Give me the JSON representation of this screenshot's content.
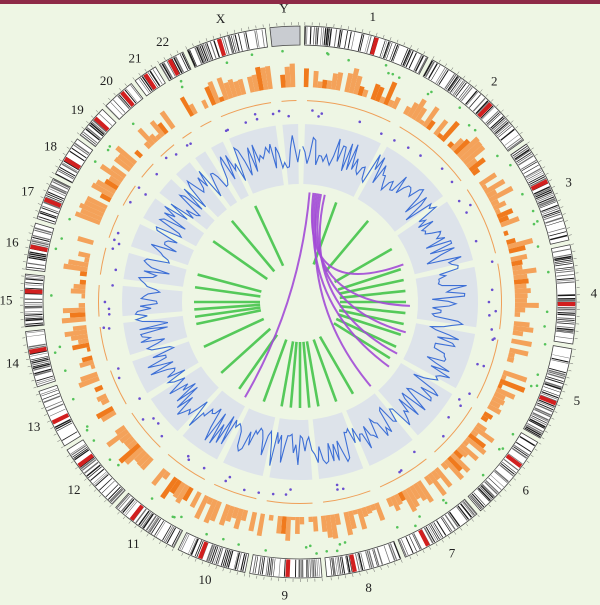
{
  "colors": {
    "background": "#eef6e4",
    "top_rule": "#8e2a47",
    "ideogram_dark": "#1a1a1a",
    "ideogram_light": "#ffffff",
    "centromere": "#d21f1f",
    "histogram": "#f4a25a",
    "histogram_dark": "#f07a1d",
    "scatter_green": "#55c35a",
    "scatter_purple": "#6a4fd0",
    "line_track": "#3d6fd6",
    "line_track_bg": "#dde3ea",
    "link_green": "#55c95a",
    "link_purple": "#a24bd6"
  },
  "chromosomes": [
    {
      "label": "1"
    },
    {
      "label": "2"
    },
    {
      "label": "3"
    },
    {
      "label": "4"
    },
    {
      "label": "5"
    },
    {
      "label": "6"
    },
    {
      "label": "7"
    },
    {
      "label": "8"
    },
    {
      "label": "9"
    },
    {
      "label": "10"
    },
    {
      "label": "11"
    },
    {
      "label": "12"
    },
    {
      "label": "13"
    },
    {
      "label": "14"
    },
    {
      "label": "15"
    },
    {
      "label": "16"
    },
    {
      "label": "17"
    },
    {
      "label": "18"
    },
    {
      "label": "19"
    },
    {
      "label": "20"
    },
    {
      "label": "21"
    },
    {
      "label": "22"
    },
    {
      "label": "X"
    },
    {
      "label": "Y"
    }
  ]
}
